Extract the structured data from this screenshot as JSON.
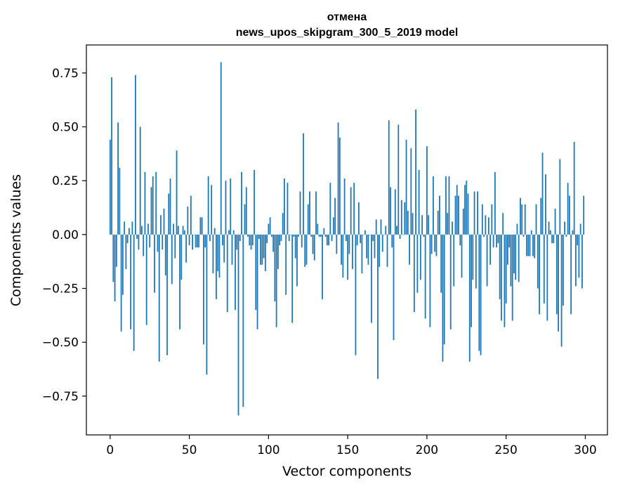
{
  "chart_data": {
    "type": "bar",
    "title": "отмена",
    "subtitle": "news_upos_skipgram_300_5_2019 model",
    "xlabel": "Vector components",
    "ylabel": "Components values",
    "xlim": [
      -15,
      314
    ],
    "ylim": [
      -0.93,
      0.88
    ],
    "x_ticks": [
      0,
      50,
      100,
      150,
      200,
      250,
      300
    ],
    "x_tick_labels": [
      "0",
      "50",
      "100",
      "150",
      "200",
      "250",
      "300"
    ],
    "y_ticks": [
      0.75,
      0.5,
      0.25,
      0.0,
      -0.25,
      -0.5,
      -0.75
    ],
    "y_tick_labels": [
      "0.75",
      "0.50",
      "0.25",
      "0.00",
      "−0.25",
      "−0.50",
      "−0.75"
    ],
    "bar_color": "#1f77b4",
    "grid": false,
    "values": [
      0.44,
      0.73,
      -0.22,
      -0.31,
      -0.15,
      0.52,
      0.31,
      -0.45,
      -0.28,
      0.06,
      -0.16,
      -0.04,
      0.03,
      -0.44,
      0.06,
      -0.54,
      0.74,
      -0.02,
      -0.07,
      0.5,
      0.04,
      -0.1,
      0.29,
      -0.42,
      0.05,
      -0.06,
      0.22,
      0.27,
      -0.27,
      0.29,
      -0.08,
      -0.59,
      0.09,
      -0.07,
      0.12,
      -0.19,
      -0.56,
      0.19,
      0.26,
      -0.23,
      0.05,
      -0.11,
      0.39,
      0.04,
      -0.44,
      -0.21,
      0.04,
      0.02,
      -0.13,
      0.13,
      -0.05,
      0.18,
      -0.07,
      0.0,
      -0.06,
      -0.06,
      -0.06,
      0.08,
      0.08,
      -0.51,
      -0.06,
      -0.65,
      0.27,
      -0.03,
      0.23,
      -0.18,
      0.03,
      -0.3,
      -0.17,
      -0.2,
      0.8,
      -0.05,
      -0.13,
      0.25,
      -0.36,
      0.02,
      0.26,
      -0.14,
      0.02,
      -0.35,
      -0.07,
      -0.84,
      -0.03,
      0.29,
      -0.8,
      0.14,
      0.22,
      -0.01,
      -0.05,
      -0.07,
      -0.05,
      0.3,
      -0.35,
      -0.44,
      -0.02,
      -0.14,
      -0.14,
      -0.11,
      -0.17,
      -0.04,
      0.05,
      0.08,
      -0.01,
      -0.08,
      -0.31,
      -0.43,
      -0.16,
      -0.05,
      -0.03,
      0.1,
      0.26,
      -0.28,
      0.24,
      -0.03,
      0.0,
      -0.41,
      -0.01,
      -0.11,
      -0.24,
      -0.01,
      0.2,
      -0.06,
      0.47,
      -0.15,
      -0.14,
      0.14,
      0.2,
      -0.01,
      -0.09,
      -0.12,
      0.2,
      0.05,
      -0.01,
      -0.01,
      -0.3,
      0.03,
      -0.01,
      -0.05,
      -0.05,
      0.24,
      -0.03,
      0.08,
      0.17,
      -0.09,
      0.52,
      0.45,
      -0.14,
      -0.2,
      0.26,
      -0.03,
      -0.21,
      -0.09,
      0.22,
      -0.16,
      0.24,
      -0.56,
      -0.05,
      0.15,
      -0.04,
      -0.18,
      0.0,
      0.02,
      -0.11,
      -0.14,
      0.0,
      -0.41,
      -0.03,
      -0.11,
      0.07,
      -0.67,
      -0.15,
      0.07,
      -0.08,
      0.0,
      0.04,
      -0.15,
      0.53,
      0.22,
      -0.06,
      -0.49,
      0.21,
      0.04,
      0.51,
      -0.02,
      0.16,
      0.0,
      0.15,
      0.44,
      0.11,
      -0.14,
      0.4,
      0.1,
      -0.36,
      0.58,
      -0.27,
      0.3,
      -0.21,
      0.09,
      -0.01,
      -0.39,
      0.41,
      0.09,
      -0.43,
      -0.09,
      0.27,
      -0.08,
      -0.1,
      0.11,
      0.18,
      -0.27,
      -0.59,
      -0.51,
      0.27,
      0.1,
      0.27,
      -0.44,
      0.06,
      -0.24,
      0.18,
      0.23,
      0.18,
      -0.05,
      -0.2,
      0.12,
      0.23,
      0.25,
      0.19,
      -0.59,
      -0.43,
      -0.21,
      0.2,
      -0.25,
      0.2,
      -0.54,
      -0.56,
      0.14,
      -0.01,
      0.09,
      -0.24,
      0.08,
      -0.14,
      0.14,
      -0.06,
      0.29,
      -0.06,
      -0.04,
      -0.3,
      -0.4,
      0.1,
      -0.43,
      -0.32,
      -0.14,
      -0.06,
      -0.24,
      -0.4,
      -0.18,
      -0.21,
      0.05,
      -0.22,
      0.17,
      0.14,
      -0.01,
      0.14,
      -0.1,
      -0.1,
      -0.1,
      0.02,
      -0.1,
      -0.11,
      0.14,
      -0.25,
      -0.37,
      0.17,
      0.38,
      -0.32,
      0.28,
      -0.4,
      0.06,
      0.02,
      -0.04,
      -0.04,
      0.12,
      -0.37,
      -0.45,
      0.35,
      -0.52,
      -0.33,
      0.06,
      -0.01,
      0.24,
      0.18,
      -0.37,
      0.02,
      0.43,
      -0.24,
      -0.05,
      -0.2,
      0.05,
      -0.25,
      0.18
    ]
  }
}
